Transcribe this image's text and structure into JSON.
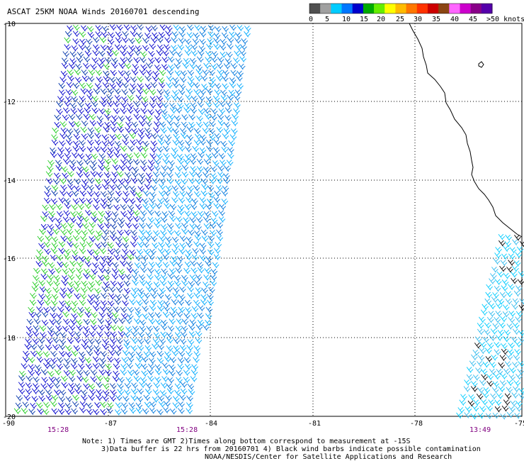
{
  "title": "ASCAT 25KM NOAA Winds 20160701 descending",
  "legend": {
    "colors": [
      "#505050",
      "#a0a0a0",
      "#00ccff",
      "#0077ff",
      "#0000cc",
      "#00aa00",
      "#66ee00",
      "#ffff00",
      "#ffbb00",
      "#ff7700",
      "#ff3300",
      "#cc0000",
      "#8b4513",
      "#ff66ff",
      "#cc00cc",
      "#880088",
      "#5500aa"
    ],
    "labels": [
      "0",
      "5",
      "10",
      "15",
      "20",
      "25",
      "30",
      "35",
      "40",
      "45",
      ">50 knots"
    ]
  },
  "axes": {
    "lon_labels": [
      "-90",
      "-87",
      "-84",
      "-81",
      "-78",
      "-75"
    ],
    "lat_labels": [
      "-10",
      "-12",
      "-14",
      "-16",
      "-18",
      "-20"
    ]
  },
  "pass_times": [
    "15:28",
    "15:28",
    "13:49"
  ],
  "notes": [
    "Note: 1) Times are GMT 2)Times along bottom correspond to measurement at -15S",
    "3)Data buffer is 22 hrs from 20160701 4) Black wind barbs indicate possible contamination",
    "NOAA/NESDIS/Center for Satellite Applications and Research"
  ],
  "swaths": [
    {
      "name": "west",
      "predominant_speed_band": "10-15",
      "color_mix": [
        "#0000cc",
        "#0033aa",
        "#00aa00",
        "#00aaff"
      ]
    },
    {
      "name": "east",
      "predominant_speed_band": "5-10",
      "color_mix": [
        "#00ccff",
        "#33bbee",
        "#000000"
      ]
    }
  ]
}
